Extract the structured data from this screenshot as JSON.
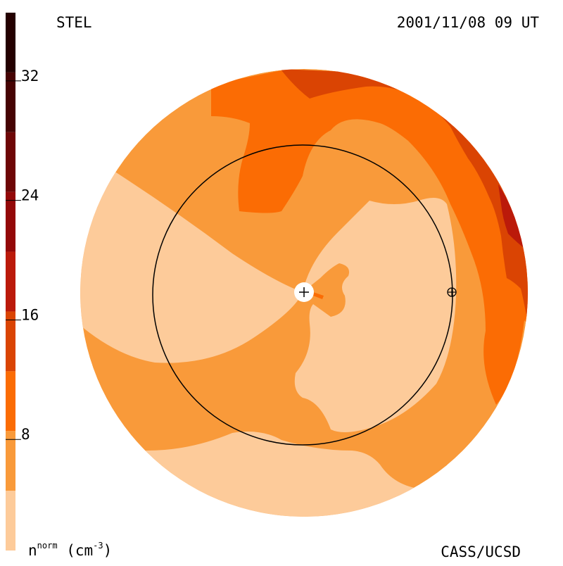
{
  "chart_data": {
    "type": "heatmap",
    "title": "STEL",
    "timestamp": "2001/11/08 09 UT",
    "credit": "CASS/UCSD",
    "colorbar": {
      "quantity": "n",
      "superscript": "norm",
      "unit": "(cm",
      "unit_exp": "-3",
      "unit_close": ")",
      "range": [
        0,
        36
      ],
      "ticks": [
        8,
        16,
        24,
        32
      ],
      "levels": [
        {
          "from": 0,
          "to": 4,
          "color": "#fdcb9a"
        },
        {
          "from": 4,
          "to": 8,
          "color": "#f99a3a"
        },
        {
          "from": 8,
          "to": 12,
          "color": "#fb6c04"
        },
        {
          "from": 12,
          "to": 16,
          "color": "#da4403"
        },
        {
          "from": 16,
          "to": 20,
          "color": "#bb1a0a"
        },
        {
          "from": 20,
          "to": 24,
          "color": "#930808"
        },
        {
          "from": 24,
          "to": 28,
          "color": "#6e0606"
        },
        {
          "from": 28,
          "to": 32,
          "color": "#460303"
        },
        {
          "from": 32,
          "to": 36,
          "color": "#240000"
        }
      ]
    },
    "markers": [
      "sun",
      "earth-orbit",
      "earth"
    ]
  }
}
